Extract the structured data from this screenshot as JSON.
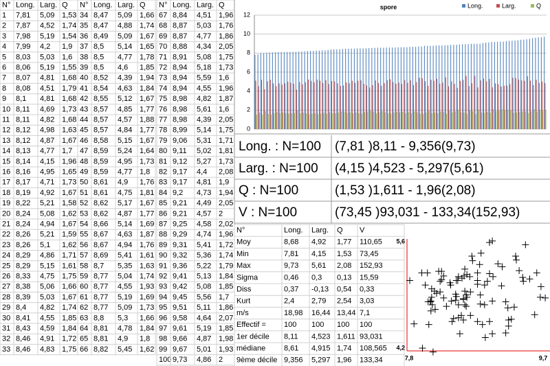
{
  "data_table": {
    "headers": [
      "N°",
      "Long.",
      "Larg.",
      "Q"
    ],
    "rows": [
      [
        "1",
        "7,81",
        "5,09",
        "1,53"
      ],
      [
        "2",
        "7,87",
        "4,52",
        "1,74"
      ],
      [
        "3",
        "7,98",
        "5,19",
        "1,54"
      ],
      [
        "4",
        "7,99",
        "4,2",
        "1,9"
      ],
      [
        "5",
        "8,03",
        "5,03",
        "1,6"
      ],
      [
        "6",
        "8,06",
        "5,19",
        "1,55"
      ],
      [
        "7",
        "8,07",
        "4,81",
        "1,68"
      ],
      [
        "8",
        "8,08",
        "4,51",
        "1,79"
      ],
      [
        "9",
        "8,1",
        "4,81",
        "1,68"
      ],
      [
        "10",
        "8,11",
        "4,69",
        "1,73"
      ],
      [
        "11",
        "8,11",
        "4,82",
        "1,68"
      ],
      [
        "12",
        "8,12",
        "4,98",
        "1,63"
      ],
      [
        "13",
        "8,12",
        "4,87",
        "1,67"
      ],
      [
        "14",
        "8,13",
        "4,77",
        "1,7"
      ],
      [
        "15",
        "8,14",
        "4,15",
        "1,96"
      ],
      [
        "16",
        "8,16",
        "4,95",
        "1,65"
      ],
      [
        "17",
        "8,17",
        "4,71",
        "1,73"
      ],
      [
        "18",
        "8,19",
        "4,92",
        "1,67"
      ],
      [
        "19",
        "8,22",
        "5,21",
        "1,58"
      ],
      [
        "20",
        "8,24",
        "5,08",
        "1,62"
      ],
      [
        "21",
        "8,24",
        "4,94",
        "1,67"
      ],
      [
        "22",
        "8,26",
        "5,21",
        "1,59"
      ],
      [
        "23",
        "8,26",
        "5,1",
        "1,62"
      ],
      [
        "24",
        "8,29",
        "4,86",
        "1,71"
      ],
      [
        "25",
        "8,29",
        "5,15",
        "1,61"
      ],
      [
        "26",
        "8,33",
        "4,75",
        "1,75"
      ],
      [
        "27",
        "8,38",
        "5,06",
        "1,66"
      ],
      [
        "28",
        "8,39",
        "5,03",
        "1,67"
      ],
      [
        "29",
        "8,4",
        "4,82",
        "1,74"
      ],
      [
        "30",
        "8,41",
        "4,55",
        "1,85"
      ],
      [
        "31",
        "8,43",
        "4,59",
        "1,84"
      ],
      [
        "32",
        "8,46",
        "4,91",
        "1,72"
      ],
      [
        "33",
        "8,46",
        "4,83",
        "1,75"
      ],
      [
        "34",
        "8,47",
        "5,09",
        "1,66"
      ],
      [
        "35",
        "8,47",
        "4,88",
        "1,74"
      ],
      [
        "36",
        "8,49",
        "5,09",
        "1,67"
      ],
      [
        "37",
        "8,5",
        "5,14",
        "1,65"
      ],
      [
        "38",
        "8,5",
        "4,77",
        "1,78"
      ],
      [
        "39",
        "8,5",
        "4,6",
        "1,85"
      ],
      [
        "40",
        "8,52",
        "4,39",
        "1,94"
      ],
      [
        "41",
        "8,54",
        "4,63",
        "1,84"
      ],
      [
        "42",
        "8,55",
        "5,12",
        "1,67"
      ],
      [
        "43",
        "8,57",
        "4,85",
        "1,77"
      ],
      [
        "44",
        "8,57",
        "4,57",
        "1,88"
      ],
      [
        "45",
        "8,57",
        "4,84",
        "1,77"
      ],
      [
        "46",
        "8,58",
        "5,15",
        "1,67"
      ],
      [
        "47",
        "8,59",
        "5,24",
        "1,64"
      ],
      [
        "48",
        "8,59",
        "4,95",
        "1,73"
      ],
      [
        "49",
        "8,59",
        "4,77",
        "1,8"
      ],
      [
        "50",
        "8,61",
        "4,9",
        "1,76"
      ],
      [
        "51",
        "8,61",
        "4,75",
        "1,81"
      ],
      [
        "52",
        "8,62",
        "5,17",
        "1,67"
      ],
      [
        "53",
        "8,62",
        "4,87",
        "1,77"
      ],
      [
        "54",
        "8,66",
        "5,14",
        "1,69"
      ],
      [
        "55",
        "8,67",
        "4,63",
        "1,87"
      ],
      [
        "56",
        "8,67",
        "4,94",
        "1,76"
      ],
      [
        "57",
        "8,69",
        "5,41",
        "1,61"
      ],
      [
        "58",
        "8,7",
        "5,35",
        "1,63"
      ],
      [
        "59",
        "8,77",
        "5,04",
        "1,74"
      ],
      [
        "60",
        "8,77",
        "4,55",
        "1,93"
      ],
      [
        "61",
        "8,77",
        "5,19",
        "1,69"
      ],
      [
        "62",
        "8,77",
        "5,09",
        "1,73"
      ],
      [
        "63",
        "8,8",
        "5,3",
        "1,66"
      ],
      [
        "64",
        "8,81",
        "4,78",
        "1,84"
      ],
      [
        "65",
        "8,81",
        "4,9",
        "1,8"
      ],
      [
        "66",
        "8,82",
        "5,45",
        "1,62"
      ],
      [
        "67",
        "8,84",
        "4,51",
        "1,96"
      ],
      [
        "68",
        "8,87",
        "5,03",
        "1,76"
      ],
      [
        "69",
        "8,87",
        "4,77",
        "1,86"
      ],
      [
        "70",
        "8,88",
        "4,34",
        "2,05"
      ],
      [
        "71",
        "8,91",
        "5,08",
        "1,75"
      ],
      [
        "72",
        "8,94",
        "5,18",
        "1,73"
      ],
      [
        "73",
        "8,94",
        "5,59",
        "1,6"
      ],
      [
        "74",
        "8,94",
        "4,55",
        "1,96"
      ],
      [
        "75",
        "8,98",
        "4,82",
        "1,87"
      ],
      [
        "76",
        "8,98",
        "5,61",
        "1,6"
      ],
      [
        "77",
        "8,98",
        "4,39",
        "2,05"
      ],
      [
        "78",
        "8,99",
        "5,14",
        "1,75"
      ],
      [
        "79",
        "9,06",
        "5,31",
        "1,71"
      ],
      [
        "80",
        "9,11",
        "5,02",
        "1,81"
      ],
      [
        "81",
        "9,12",
        "5,27",
        "1,73"
      ],
      [
        "82",
        "9,17",
        "4,4",
        "2,08"
      ],
      [
        "83",
        "9,17",
        "4,81",
        "1,9"
      ],
      [
        "84",
        "9,2",
        "4,73",
        "1,94"
      ],
      [
        "85",
        "9,21",
        "4,49",
        "2,05"
      ],
      [
        "86",
        "9,21",
        "4,57",
        "2"
      ],
      [
        "87",
        "9,25",
        "4,58",
        "2,02"
      ],
      [
        "88",
        "9,29",
        "4,74",
        "1,96"
      ],
      [
        "89",
        "9,31",
        "5,41",
        "1,72"
      ],
      [
        "90",
        "9,32",
        "5,36",
        "1,74"
      ],
      [
        "91",
        "9,36",
        "5,22",
        "1,79"
      ],
      [
        "92",
        "9,41",
        "5,13",
        "1,84"
      ],
      [
        "93",
        "9,42",
        "5,08",
        "1,85"
      ],
      [
        "94",
        "9,45",
        "5,56",
        "1,7"
      ],
      [
        "95",
        "9,51",
        "5,11",
        "1,86"
      ],
      [
        "96",
        "9,58",
        "4,64",
        "2,07"
      ],
      [
        "97",
        "9,61",
        "5,19",
        "1,85"
      ],
      [
        "98",
        "9,66",
        "4,87",
        "1,98"
      ],
      [
        "99",
        "9,67",
        "5,01",
        "1,93"
      ],
      [
        "100",
        "9,73",
        "4,86",
        "2"
      ]
    ]
  },
  "chart_data": [
    {
      "type": "bar",
      "title": "spore",
      "ylim": [
        0,
        12
      ],
      "yticks": [
        0,
        2,
        4,
        6,
        8,
        10,
        12
      ],
      "grid": true,
      "legend": "top-right",
      "series": [
        {
          "name": "Long.",
          "color": "#4f81bd",
          "values": [
            7.81,
            7.87,
            7.98,
            7.99,
            8.03,
            8.06,
            8.07,
            8.08,
            8.1,
            8.11,
            8.11,
            8.12,
            8.12,
            8.13,
            8.14,
            8.16,
            8.17,
            8.19,
            8.22,
            8.24,
            8.24,
            8.26,
            8.26,
            8.29,
            8.29,
            8.33,
            8.38,
            8.39,
            8.4,
            8.41,
            8.43,
            8.46,
            8.46,
            8.47,
            8.47,
            8.49,
            8.5,
            8.5,
            8.5,
            8.52,
            8.54,
            8.55,
            8.57,
            8.57,
            8.57,
            8.58,
            8.59,
            8.59,
            8.59,
            8.61,
            8.61,
            8.62,
            8.62,
            8.66,
            8.67,
            8.67,
            8.69,
            8.7,
            8.77,
            8.77,
            8.77,
            8.77,
            8.8,
            8.81,
            8.81,
            8.82,
            8.84,
            8.87,
            8.87,
            8.88,
            8.91,
            8.94,
            8.94,
            8.94,
            8.98,
            8.98,
            8.98,
            8.99,
            9.06,
            9.11,
            9.12,
            9.17,
            9.17,
            9.2,
            9.21,
            9.21,
            9.25,
            9.29,
            9.31,
            9.32,
            9.36,
            9.41,
            9.42,
            9.45,
            9.51,
            9.58,
            9.61,
            9.66,
            9.67,
            9.73
          ]
        },
        {
          "name": "Larg.",
          "color": "#c0504d",
          "values": [
            5.09,
            4.52,
            5.19,
            4.2,
            5.03,
            5.19,
            4.81,
            4.51,
            4.81,
            4.69,
            4.82,
            4.98,
            4.87,
            4.77,
            4.15,
            4.95,
            4.71,
            4.92,
            5.21,
            5.08,
            4.94,
            5.21,
            5.1,
            4.86,
            5.15,
            4.75,
            5.06,
            5.03,
            4.82,
            4.55,
            4.59,
            4.91,
            4.83,
            5.09,
            4.88,
            5.09,
            5.14,
            4.77,
            4.6,
            4.39,
            4.63,
            5.12,
            4.85,
            4.57,
            4.84,
            5.15,
            5.24,
            4.95,
            4.77,
            4.9,
            4.75,
            5.17,
            4.87,
            5.14,
            4.63,
            4.94,
            5.41,
            5.35,
            5.04,
            4.55,
            5.19,
            5.09,
            5.3,
            4.78,
            4.9,
            5.45,
            4.51,
            5.03,
            4.77,
            4.34,
            5.08,
            5.18,
            5.59,
            4.55,
            4.82,
            5.61,
            4.39,
            5.14,
            5.31,
            5.02,
            5.27,
            4.4,
            4.81,
            4.73,
            4.49,
            4.57,
            4.58,
            4.74,
            5.41,
            5.36,
            5.22,
            5.13,
            5.08,
            5.56,
            5.11,
            4.64,
            5.19,
            4.87,
            5.01,
            4.86
          ]
        },
        {
          "name": "Q",
          "color": "#9bbb59",
          "values": [
            1.53,
            1.74,
            1.54,
            1.9,
            1.6,
            1.55,
            1.68,
            1.79,
            1.68,
            1.73,
            1.68,
            1.63,
            1.67,
            1.7,
            1.96,
            1.65,
            1.73,
            1.67,
            1.58,
            1.62,
            1.67,
            1.59,
            1.62,
            1.71,
            1.61,
            1.75,
            1.66,
            1.67,
            1.74,
            1.85,
            1.84,
            1.72,
            1.75,
            1.66,
            1.74,
            1.67,
            1.65,
            1.78,
            1.85,
            1.94,
            1.84,
            1.67,
            1.77,
            1.88,
            1.77,
            1.67,
            1.64,
            1.73,
            1.8,
            1.76,
            1.81,
            1.67,
            1.77,
            1.69,
            1.87,
            1.76,
            1.61,
            1.63,
            1.74,
            1.93,
            1.69,
            1.73,
            1.66,
            1.84,
            1.8,
            1.62,
            1.96,
            1.76,
            1.86,
            2.05,
            1.75,
            1.73,
            1.6,
            1.96,
            1.87,
            1.6,
            2.05,
            1.75,
            1.71,
            1.81,
            1.73,
            2.08,
            1.9,
            1.94,
            2.05,
            2,
            2.02,
            1.96,
            1.72,
            1.74,
            1.79,
            1.84,
            1.85,
            1.7,
            1.86,
            2.07,
            1.85,
            1.98,
            1.93,
            2
          ]
        }
      ]
    },
    {
      "type": "scatter",
      "color": "#000000",
      "axis_color": "#e00000",
      "xlim": [
        7.8,
        9.7
      ],
      "ylim": [
        4.2,
        5.6
      ],
      "xticks": [
        {
          "value": 7.8,
          "label": "7,8"
        },
        {
          "value": 9.7,
          "label": "9,7"
        }
      ],
      "yticks": [
        {
          "value": 4.2,
          "label": "4,2"
        },
        {
          "value": 5.6,
          "label": "5,6"
        }
      ]
    }
  ],
  "summary": {
    "rows": [
      [
        "Long. : N=100",
        "(7,81 )8,11 - 9,356(9,73)"
      ],
      [
        "Larg. : N=100",
        "(4,15 )4,523 - 5,297(5,61)"
      ],
      [
        "Q : N=100",
        "(1,53 )1,611 - 1,96(2,08)"
      ],
      [
        "V : N=100",
        "(73,45 )93,031 - 133,34(152,93)"
      ]
    ]
  },
  "stats_table": {
    "headers": [
      "N°",
      "Long.",
      "Larg.",
      "Q",
      "V"
    ],
    "rows": [
      [
        "Moy",
        "8,68",
        "4,92",
        "1,77",
        "110,65"
      ],
      [
        "Min",
        "7,81",
        "4,15",
        "1,53",
        "73,45"
      ],
      [
        "Max",
        "9,73",
        "5,61",
        "2,08",
        "152,93"
      ],
      [
        "Sigma",
        "0,46",
        "0,3",
        "0,13",
        "15,59"
      ],
      [
        "Diss",
        "0,37",
        "-0,13",
        "0,54",
        "0,33"
      ],
      [
        "Kurt",
        "2,4",
        "2,79",
        "2,54",
        "3,03"
      ],
      [
        "m/s",
        "18,98",
        "16,44",
        "13,44",
        "7,1"
      ],
      [
        "Effectif =",
        "100",
        "100",
        "100",
        "100"
      ],
      [
        "1er décile",
        "8,11",
        "4,523",
        "1,611",
        "93,031"
      ],
      [
        "médiane",
        "8,61",
        "4,915",
        "1,74",
        "108,565"
      ],
      [
        "9ème décile",
        "9,356",
        "5,297",
        "1,96",
        "133,34"
      ]
    ]
  }
}
